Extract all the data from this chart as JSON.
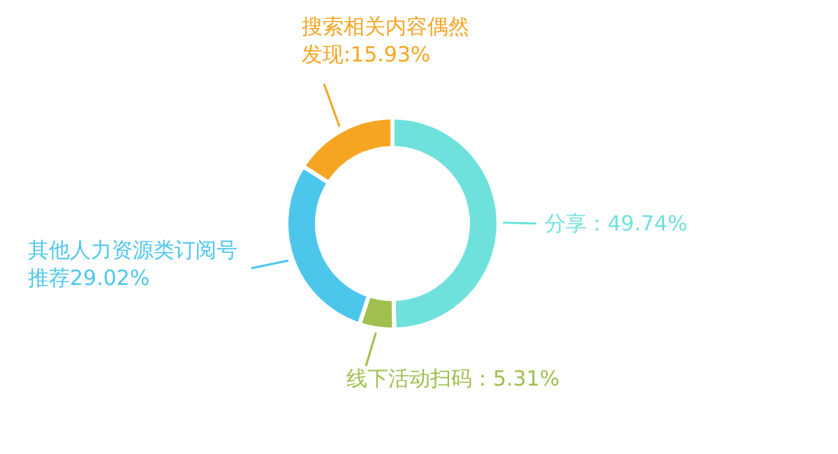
{
  "chart_data": {
    "type": "donut",
    "categories": [
      "分享",
      "线下活动扫码",
      "其他人力资源类订阅号推荐",
      "搜索相关内容偶然发现"
    ],
    "values": [
      49.74,
      5.31,
      29.02,
      15.93
    ],
    "value_labels": [
      "49.74%",
      "5.31%",
      "29.02%",
      "15.93%"
    ],
    "colors": [
      "#6fe1dc",
      "#9fbf4f",
      "#4dc6ec",
      "#f5a522"
    ]
  }
}
